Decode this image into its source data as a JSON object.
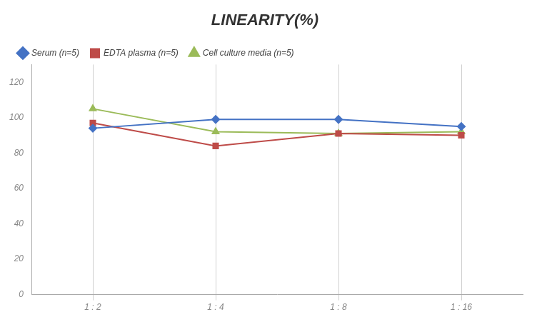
{
  "chart_data": {
    "type": "line",
    "title": "LINEARITY(%)",
    "categories": [
      "1 : 2",
      "1 : 4",
      "1 : 8",
      "1 : 16"
    ],
    "series": [
      {
        "name": "Serum (n=5)",
        "color": "#4472C4",
        "marker": "diamond",
        "values": [
          94,
          99,
          99,
          95
        ]
      },
      {
        "name": "EDTA plasma (n=5)",
        "color": "#BE4B48",
        "marker": "square",
        "values": [
          97,
          84,
          91,
          90
        ]
      },
      {
        "name": "Cell culture media (n=5)",
        "color": "#9BBB59",
        "marker": "triangle",
        "values": [
          105,
          92,
          91,
          92
        ]
      }
    ],
    "ylim": [
      0,
      130
    ],
    "yticks": [
      0,
      20,
      40,
      60,
      80,
      100,
      120
    ],
    "grid": "x",
    "legend": "top"
  }
}
